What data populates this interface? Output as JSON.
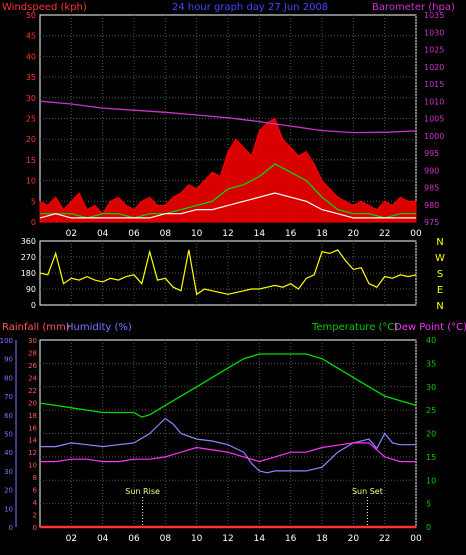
{
  "colors": {
    "background": "#000000",
    "grid": "#555555",
    "frame": "#ffffff",
    "wind": "#ff0000",
    "gust": "#00e000",
    "avg_wind": "#ffffff",
    "barometer": "#cc33cc",
    "direction": "#ffff00",
    "rainfall": "#ff3333",
    "humidity": "#8888ff",
    "temperature": "#00dd00",
    "dewpoint": "#ff33ff",
    "title": "#4444ff",
    "wind_label": "#ff3333",
    "baro_label": "#cc33cc",
    "rain_axis": "#ff5555",
    "humid_axis": "#7777ff",
    "temp_axis": "#00cc00",
    "dir_label": "#ffff00",
    "sun_label": "#ffff88"
  },
  "chart_data": [
    {
      "type": "line",
      "title": "24 hour graph day  27 Jun 2008",
      "left_label": "Windspeed (kph)",
      "right_label": "Barometer (hpa)",
      "x_ticks": [
        "02",
        "04",
        "06",
        "08",
        "10",
        "12",
        "14",
        "16",
        "18",
        "20",
        "22",
        "00"
      ],
      "left_ticks": [
        0,
        5,
        10,
        15,
        20,
        25,
        30,
        35,
        40,
        45,
        50
      ],
      "right_ticks": [
        975,
        980,
        985,
        990,
        995,
        1000,
        1005,
        1010,
        1015,
        1020,
        1025,
        1030,
        1035
      ],
      "ylim_left": [
        0,
        50
      ],
      "ylim_right": [
        975,
        1035
      ],
      "grid": true,
      "series": [
        {
          "key": "wind",
          "x": [
            0,
            0.5,
            1,
            1.5,
            2,
            2.5,
            3,
            3.5,
            4,
            4.5,
            5,
            5.5,
            6,
            6.5,
            7,
            7.5,
            8,
            8.5,
            9,
            9.5,
            10,
            10.5,
            11,
            11.5,
            12,
            12.5,
            13,
            13.5,
            14,
            14.5,
            15,
            15.5,
            16,
            16.5,
            17,
            17.5,
            18,
            18.5,
            19,
            19.5,
            20,
            20.5,
            21,
            21.5,
            22,
            22.5,
            23,
            23.5,
            24
          ],
          "values": [
            5,
            4,
            6,
            3,
            5,
            7,
            3,
            4,
            2,
            5,
            6,
            4,
            3,
            5,
            6,
            4,
            4,
            6,
            7,
            9,
            8,
            10,
            12,
            11,
            17,
            20,
            18,
            16,
            22,
            24,
            25,
            20,
            18,
            16,
            17,
            14,
            10,
            8,
            6,
            5,
            4,
            5,
            4,
            3,
            5,
            4,
            6,
            5,
            5
          ]
        },
        {
          "key": "gust",
          "x": [
            0,
            1,
            2,
            3,
            4,
            5,
            6,
            7,
            8,
            9,
            10,
            11,
            12,
            13,
            14,
            15,
            16,
            17,
            18,
            19,
            20,
            21,
            22,
            23,
            24
          ],
          "values": [
            2,
            2,
            2,
            1,
            2,
            2,
            1,
            2,
            2,
            3,
            4,
            5,
            8,
            9,
            11,
            14,
            12,
            10,
            6,
            3,
            2,
            2,
            1,
            2,
            2
          ]
        },
        {
          "key": "avg_wind",
          "x": [
            0,
            1,
            2,
            3,
            4,
            5,
            6,
            7,
            8,
            9,
            10,
            11,
            12,
            13,
            14,
            15,
            16,
            17,
            18,
            19,
            20,
            21,
            22,
            23,
            24
          ],
          "values": [
            1,
            2,
            1,
            1,
            1,
            1,
            1,
            1,
            2,
            2,
            3,
            3,
            4,
            5,
            6,
            7,
            6,
            5,
            3,
            2,
            1,
            1,
            1,
            1,
            1
          ]
        },
        {
          "key": "barometer",
          "x": [
            0,
            2,
            4,
            6,
            8,
            10,
            12,
            14,
            16,
            18,
            20,
            22,
            24
          ],
          "values": [
            1010.0,
            1009.2,
            1008.0,
            1007.4,
            1006.8,
            1006.0,
            1005.2,
            1004.1,
            1002.8,
            1001.5,
            1000.9,
            1001.0,
            1001.4
          ]
        }
      ]
    },
    {
      "type": "line",
      "title": "",
      "left_ticks": [
        0,
        90,
        180,
        270,
        360
      ],
      "right_labels": [
        "N",
        "W",
        "S",
        "E",
        "N"
      ],
      "x_ticks": [],
      "ylim": [
        0,
        360
      ],
      "grid": true,
      "series": [
        {
          "key": "direction",
          "x": [
            0,
            0.5,
            1,
            1.5,
            2,
            2.5,
            3,
            3.5,
            4,
            4.5,
            5,
            5.5,
            6,
            6.5,
            7,
            7.5,
            8,
            8.5,
            9,
            9.5,
            10,
            10.5,
            11,
            11.5,
            12,
            12.5,
            13,
            13.5,
            14,
            14.5,
            15,
            15.5,
            16,
            16.5,
            17,
            17.5,
            18,
            18.5,
            19,
            19.5,
            20,
            20.5,
            21,
            21.5,
            22,
            22.5,
            23,
            23.5,
            24
          ],
          "values": [
            180,
            170,
            290,
            120,
            150,
            140,
            160,
            140,
            130,
            150,
            140,
            160,
            170,
            120,
            300,
            140,
            150,
            100,
            80,
            310,
            60,
            90,
            80,
            70,
            60,
            70,
            80,
            90,
            90,
            100,
            110,
            100,
            120,
            90,
            150,
            170,
            300,
            290,
            310,
            250,
            200,
            210,
            120,
            100,
            160,
            150,
            170,
            160,
            170
          ]
        }
      ]
    },
    {
      "type": "line",
      "title": "",
      "labels": {
        "rainfall": "Rainfall (mm)",
        "humidity": "Humidity (%)",
        "temperature": "Temperature (°C)",
        "dewpoint": "Dew Point (°C)"
      },
      "x_ticks": [
        "02",
        "04",
        "06",
        "08",
        "10",
        "12",
        "14",
        "16",
        "18",
        "20",
        "22",
        "00"
      ],
      "humidity_ticks": [
        0,
        10,
        20,
        30,
        40,
        50,
        60,
        70,
        80,
        90,
        100
      ],
      "rain_ticks": [
        0,
        2,
        4,
        6,
        8,
        10,
        12,
        14,
        16,
        18,
        20,
        22,
        24,
        26,
        28,
        30
      ],
      "temp_ticks": [
        0,
        5,
        10,
        15,
        20,
        25,
        30,
        35,
        40
      ],
      "ylim_humidity": [
        0,
        100
      ],
      "ylim_rain": [
        0,
        30
      ],
      "ylim_temp": [
        0,
        40
      ],
      "grid": true,
      "annotations": [
        {
          "text": "Sun Rise",
          "x": 6.55
        },
        {
          "text": "Sun Set",
          "x": 20.9
        }
      ],
      "series": [
        {
          "key": "rainfall",
          "x": [
            0,
            24
          ],
          "values": [
            0,
            0
          ]
        },
        {
          "key": "temperature",
          "x": [
            0,
            1,
            2,
            3,
            4,
            5,
            6,
            6.5,
            7,
            7.5,
            8,
            9,
            10,
            11,
            12,
            13,
            14,
            15,
            16,
            16.5,
            17,
            18,
            19,
            20,
            21,
            22,
            23,
            24
          ],
          "values": [
            26.5,
            26,
            25.5,
            25,
            24.5,
            24.5,
            24.5,
            23.5,
            24,
            25,
            26,
            28,
            30,
            32,
            34,
            36,
            37,
            37,
            37,
            37,
            37,
            36,
            34,
            32,
            30,
            28,
            27,
            26
          ]
        },
        {
          "key": "humidity",
          "x": [
            0,
            1,
            2,
            3,
            4,
            5,
            6,
            7,
            7.5,
            8,
            8.5,
            9,
            10,
            11,
            12,
            12.5,
            13,
            13.5,
            14,
            14.5,
            15,
            16,
            17,
            18,
            19,
            20,
            21,
            21.5,
            22,
            22.5,
            23,
            24
          ],
          "values": [
            43,
            43,
            45,
            44,
            43,
            44,
            45,
            50,
            54,
            58,
            55,
            50,
            47,
            46,
            44,
            42,
            40,
            34,
            30,
            29,
            30,
            30,
            30,
            32,
            40,
            45,
            47,
            42,
            50,
            45,
            44,
            44
          ]
        },
        {
          "key": "dewpoint",
          "x": [
            0,
            1,
            2,
            3,
            4,
            5,
            6,
            7,
            8,
            9,
            10,
            11,
            12,
            13,
            14,
            15,
            16,
            17,
            18,
            19,
            20,
            21,
            22,
            23,
            24
          ],
          "values": [
            14,
            14,
            14.5,
            14.5,
            14,
            14,
            14.5,
            14.5,
            15,
            16,
            17,
            16.5,
            16,
            15,
            14,
            15,
            16,
            16,
            17,
            17.5,
            18,
            18,
            15,
            14,
            14
          ]
        }
      ]
    }
  ]
}
